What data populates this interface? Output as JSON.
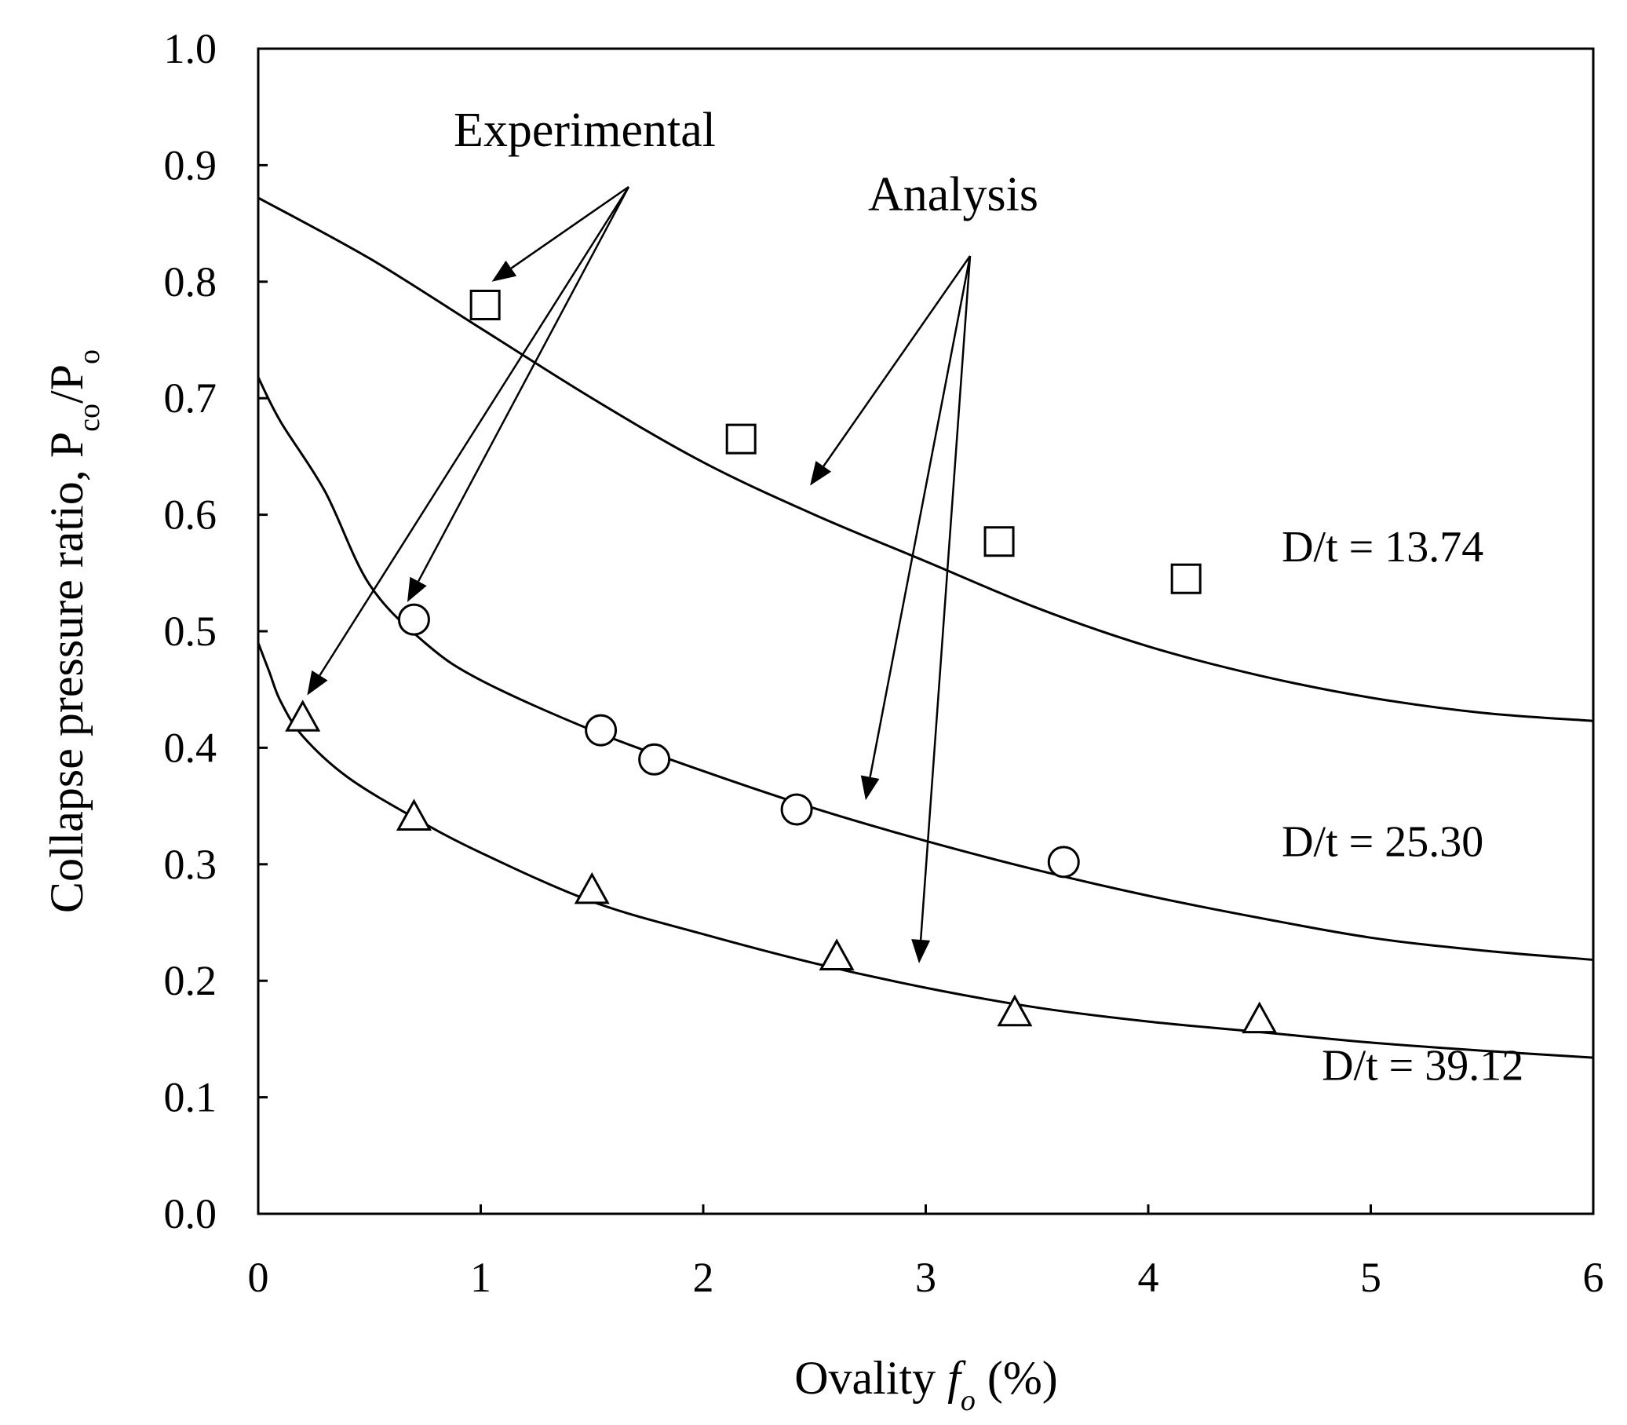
{
  "chart_data": {
    "type": "line",
    "title": "",
    "xlabel": "Ovality f_o (%)",
    "xlabel_parts": {
      "prefix": "Ovality ",
      "var": "f",
      "sub": "o",
      "suffix": " (%)"
    },
    "ylabel": "Collapse pressure ratio, P_co/P_o",
    "ylabel_parts": {
      "prefix": "Collapse pressure ratio, P",
      "sub1": "co",
      "mid": "/P",
      "sub2": "o"
    },
    "xlim": [
      0,
      6
    ],
    "ylim": [
      0,
      1.0
    ],
    "grid": false,
    "x_ticks": [
      "0",
      "1",
      "2",
      "3",
      "4",
      "5",
      "6"
    ],
    "y_ticks": [
      "0.0",
      "0.1",
      "0.2",
      "0.3",
      "0.4",
      "0.5",
      "0.6",
      "0.7",
      "0.8",
      "0.9",
      "1.0"
    ],
    "annotations": {
      "experimental": "Experimental",
      "analysis": "Analysis"
    },
    "series": [
      {
        "name": "D/t = 13.74",
        "marker": "square",
        "experimental": [
          [
            1.02,
            0.78
          ],
          [
            2.17,
            0.665
          ],
          [
            3.33,
            0.577
          ],
          [
            4.17,
            0.545
          ]
        ],
        "analysis": [
          [
            0,
            0.872
          ],
          [
            0.5,
            0.82
          ],
          [
            1,
            0.76
          ],
          [
            1.5,
            0.7
          ],
          [
            2,
            0.645
          ],
          [
            2.5,
            0.6
          ],
          [
            3,
            0.56
          ],
          [
            3.5,
            0.52
          ],
          [
            4,
            0.487
          ],
          [
            4.5,
            0.462
          ],
          [
            5,
            0.443
          ],
          [
            5.5,
            0.43
          ],
          [
            6,
            0.423
          ]
        ]
      },
      {
        "name": "D/t = 25.30",
        "marker": "circle",
        "experimental": [
          [
            0.7,
            0.51
          ],
          [
            1.54,
            0.415
          ],
          [
            1.78,
            0.39
          ],
          [
            2.42,
            0.347
          ],
          [
            3.62,
            0.302
          ]
        ],
        "analysis": [
          [
            0,
            0.718
          ],
          [
            0.1,
            0.68
          ],
          [
            0.3,
            0.62
          ],
          [
            0.5,
            0.54
          ],
          [
            0.75,
            0.49
          ],
          [
            1,
            0.458
          ],
          [
            1.5,
            0.415
          ],
          [
            2,
            0.38
          ],
          [
            2.5,
            0.348
          ],
          [
            3,
            0.32
          ],
          [
            3.5,
            0.295
          ],
          [
            4,
            0.273
          ],
          [
            4.5,
            0.254
          ],
          [
            5,
            0.237
          ],
          [
            5.5,
            0.226
          ],
          [
            6,
            0.218
          ]
        ]
      },
      {
        "name": "D/t = 39.12",
        "marker": "triangle",
        "experimental": [
          [
            0.2,
            0.425
          ],
          [
            0.7,
            0.34
          ],
          [
            1.5,
            0.277
          ],
          [
            2.6,
            0.22
          ],
          [
            3.4,
            0.172
          ],
          [
            4.5,
            0.166
          ]
        ],
        "analysis": [
          [
            0,
            0.49
          ],
          [
            0.05,
            0.465
          ],
          [
            0.1,
            0.44
          ],
          [
            0.2,
            0.41
          ],
          [
            0.4,
            0.375
          ],
          [
            0.7,
            0.34
          ],
          [
            1,
            0.31
          ],
          [
            1.5,
            0.268
          ],
          [
            2,
            0.24
          ],
          [
            2.5,
            0.215
          ],
          [
            3,
            0.194
          ],
          [
            3.5,
            0.177
          ],
          [
            4,
            0.165
          ],
          [
            4.5,
            0.156
          ],
          [
            5,
            0.147
          ],
          [
            5.5,
            0.14
          ],
          [
            6,
            0.134
          ]
        ]
      }
    ]
  }
}
